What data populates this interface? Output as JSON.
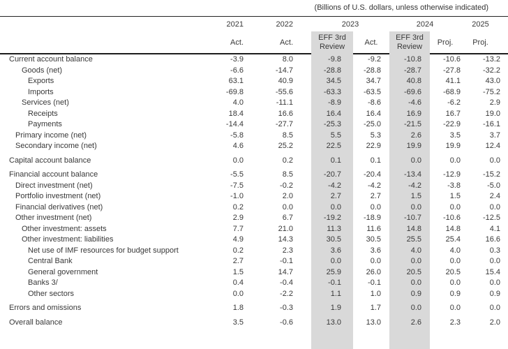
{
  "units_note": "(Billions of U.S. dollars, unless otherwise indicated)",
  "header": {
    "years": [
      "2021",
      "2022",
      "2023",
      "2024",
      "2025"
    ],
    "subcols": [
      "Act.",
      "Act.",
      "EFF 3rd Review",
      "Act.",
      "EFF 3rd Review",
      "Proj.",
      "Proj."
    ]
  },
  "colors": {
    "highlight_band": "#d9d9d9",
    "text": "#383838",
    "rule": "#1c1c1c"
  },
  "rows": [
    {
      "label": "Current account balance",
      "indent": 0,
      "gap": false,
      "values": [
        "-3.9",
        "8.0",
        "-9.8",
        "-9.2",
        "-10.8",
        "-10.6",
        "-13.2"
      ]
    },
    {
      "label": "Goods (net)",
      "indent": 2,
      "gap": false,
      "values": [
        "-6.6",
        "-14.7",
        "-28.8",
        "-28.8",
        "-28.7",
        "-27.8",
        "-32.2"
      ]
    },
    {
      "label": "Exports",
      "indent": 3,
      "gap": false,
      "values": [
        "63.1",
        "40.9",
        "34.5",
        "34.7",
        "40.8",
        "41.1",
        "43.0"
      ]
    },
    {
      "label": "Imports",
      "indent": 3,
      "gap": false,
      "values": [
        "-69.8",
        "-55.6",
        "-63.3",
        "-63.5",
        "-69.6",
        "-68.9",
        "-75.2"
      ]
    },
    {
      "label": "Services (net)",
      "indent": 2,
      "gap": false,
      "values": [
        "4.0",
        "-11.1",
        "-8.9",
        "-8.6",
        "-4.6",
        "-6.2",
        "2.9"
      ]
    },
    {
      "label": "Receipts",
      "indent": 3,
      "gap": false,
      "values": [
        "18.4",
        "16.6",
        "16.4",
        "16.4",
        "16.9",
        "16.7",
        "19.0"
      ]
    },
    {
      "label": "Payments",
      "indent": 3,
      "gap": false,
      "values": [
        "-14.4",
        "-27.7",
        "-25.3",
        "-25.0",
        "-21.5",
        "-22.9",
        "-16.1"
      ]
    },
    {
      "label": "Primary income (net)",
      "indent": 1,
      "gap": false,
      "values": [
        "-5.8",
        "8.5",
        "5.5",
        "5.3",
        "2.6",
        "3.5",
        "3.7"
      ]
    },
    {
      "label": "Secondary income (net)",
      "indent": 1,
      "gap": false,
      "values": [
        "4.6",
        "25.2",
        "22.5",
        "22.9",
        "19.9",
        "19.9",
        "12.4"
      ]
    },
    {
      "label": "Capital account balance",
      "indent": 0,
      "gap": true,
      "values": [
        "0.0",
        "0.2",
        "0.1",
        "0.1",
        "0.0",
        "0.0",
        "0.0"
      ]
    },
    {
      "label": "Financial account balance",
      "indent": 0,
      "gap": true,
      "values": [
        "-5.5",
        "8.5",
        "-20.7",
        "-20.4",
        "-13.4",
        "-12.9",
        "-15.2"
      ]
    },
    {
      "label": "Direct investment (net)",
      "indent": 1,
      "gap": false,
      "values": [
        "-7.5",
        "-0.2",
        "-4.2",
        "-4.2",
        "-4.2",
        "-3.8",
        "-5.0"
      ]
    },
    {
      "label": "Portfolio investment (net)",
      "indent": 1,
      "gap": false,
      "values": [
        "-1.0",
        "2.0",
        "2.7",
        "2.7",
        "1.5",
        "1.5",
        "2.4"
      ]
    },
    {
      "label": "Financial derivatives (net)",
      "indent": 1,
      "gap": false,
      "values": [
        "0.2",
        "0.0",
        "0.0",
        "0.0",
        "0.0",
        "0.0",
        "0.0"
      ]
    },
    {
      "label": "Other investment (net)",
      "indent": 1,
      "gap": false,
      "values": [
        "2.9",
        "6.7",
        "-19.2",
        "-18.9",
        "-10.7",
        "-10.6",
        "-12.5"
      ]
    },
    {
      "label": "Other investment: assets",
      "indent": 2,
      "gap": false,
      "values": [
        "7.7",
        "21.0",
        "11.3",
        "11.6",
        "14.8",
        "14.8",
        "4.1"
      ]
    },
    {
      "label": "Other investment: liabilities",
      "indent": 2,
      "gap": false,
      "values": [
        "4.9",
        "14.3",
        "30.5",
        "30.5",
        "25.5",
        "25.4",
        "16.6"
      ]
    },
    {
      "label": "Net use of IMF resources for budget support",
      "indent": 3,
      "gap": false,
      "values": [
        "0.2",
        "2.3",
        "3.6",
        "3.6",
        "4.0",
        "4.0",
        "0.3"
      ]
    },
    {
      "label": "Central Bank",
      "indent": 3,
      "gap": false,
      "values": [
        "2.7",
        "-0.1",
        "0.0",
        "0.0",
        "0.0",
        "0.0",
        "0.0"
      ]
    },
    {
      "label": "General government",
      "indent": 3,
      "gap": false,
      "values": [
        "1.5",
        "14.7",
        "25.9",
        "26.0",
        "20.5",
        "20.5",
        "15.4"
      ]
    },
    {
      "label": "Banks 3/",
      "indent": 3,
      "gap": false,
      "values": [
        "0.4",
        "-0.4",
        "-0.1",
        "-0.1",
        "0.0",
        "0.0",
        "0.0"
      ]
    },
    {
      "label": "Other sectors",
      "indent": 3,
      "gap": false,
      "values": [
        "0.0",
        "-2.2",
        "1.1",
        "1.0",
        "0.9",
        "0.9",
        "0.9"
      ]
    },
    {
      "label": "Errors and omissions",
      "indent": 0,
      "gap": true,
      "values": [
        "1.8",
        "-0.3",
        "1.9",
        "1.7",
        "0.0",
        "0.0",
        "0.0"
      ]
    },
    {
      "label": "Overall balance",
      "indent": 0,
      "gap": true,
      "values": [
        "3.5",
        "-0.6",
        "13.0",
        "13.0",
        "2.6",
        "2.3",
        "2.0"
      ]
    }
  ]
}
